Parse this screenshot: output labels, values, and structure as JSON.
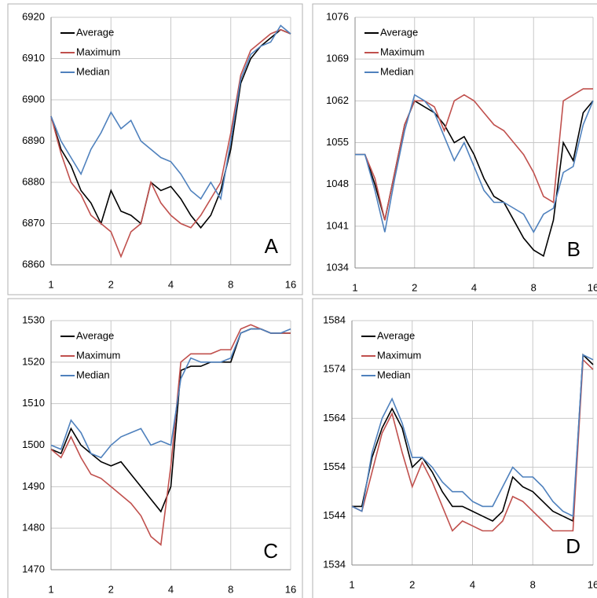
{
  "chart_data": [
    {
      "type": "line",
      "label": "A",
      "xscale": "log",
      "grid": true,
      "legend": "upper left",
      "x": [
        1,
        1.122,
        1.26,
        1.414,
        1.587,
        1.782,
        2,
        2.245,
        2.52,
        2.828,
        3.175,
        3.564,
        4,
        4.49,
        5.04,
        5.657,
        6.35,
        7.127,
        8,
        8.98,
        10.079,
        11.314,
        12.699,
        14.254,
        16
      ],
      "xlim": [
        1,
        16
      ],
      "xticks": [
        1,
        2,
        4,
        8,
        16
      ],
      "ylim": [
        6860,
        6920
      ],
      "yticks": [
        6860,
        6870,
        6880,
        6890,
        6900,
        6910,
        6920
      ],
      "series": [
        {
          "name": "Average",
          "color": "#000000",
          "values": [
            6896,
            6888,
            6884,
            6878,
            6875,
            6870,
            6878,
            6873,
            6872,
            6870,
            6880,
            6878,
            6879,
            6876,
            6872,
            6869,
            6872,
            6878,
            6888,
            6904,
            6910,
            6913,
            6915,
            6917,
            6916
          ]
        },
        {
          "name": "Maximum",
          "color": "#c0504d",
          "values": [
            6896,
            6887,
            6880,
            6877,
            6872,
            6870,
            6868,
            6862,
            6868,
            6870,
            6880,
            6875,
            6872,
            6870,
            6869,
            6872,
            6876,
            6880,
            6892,
            6906,
            6912,
            6914,
            6916,
            6917,
            6916
          ]
        },
        {
          "name": "Median",
          "color": "#4f81bd",
          "values": [
            6896,
            6890,
            6886,
            6882,
            6888,
            6892,
            6897,
            6893,
            6895,
            6890,
            6888,
            6886,
            6885,
            6882,
            6878,
            6876,
            6880,
            6876,
            6890,
            6905,
            6911,
            6913,
            6914,
            6918,
            6916
          ]
        }
      ]
    },
    {
      "type": "line",
      "label": "B",
      "xscale": "log",
      "grid": true,
      "legend": "upper left",
      "x": [
        1,
        1.122,
        1.26,
        1.414,
        1.587,
        1.782,
        2,
        2.245,
        2.52,
        2.828,
        3.175,
        3.564,
        4,
        4.49,
        5.04,
        5.657,
        6.35,
        7.127,
        8,
        8.98,
        10.079,
        11.314,
        12.699,
        14.254,
        16
      ],
      "xlim": [
        1,
        16
      ],
      "xticks": [
        1,
        2,
        4,
        8,
        16
      ],
      "ylim": [
        1034,
        1076
      ],
      "yticks": [
        1034,
        1041,
        1048,
        1055,
        1062,
        1069,
        1076
      ],
      "series": [
        {
          "name": "Average",
          "color": "#000000",
          "values": [
            1053,
            1053,
            1048,
            1042,
            1050,
            1058,
            1062,
            1061,
            1060,
            1058,
            1055,
            1056,
            1053,
            1049,
            1046,
            1045,
            1042,
            1039,
            1037,
            1036,
            1042,
            1055,
            1052,
            1060,
            1062
          ]
        },
        {
          "name": "Maximum",
          "color": "#c0504d",
          "values": [
            1053,
            1053,
            1049,
            1042,
            1050,
            1058,
            1062,
            1062,
            1061,
            1057,
            1062,
            1063,
            1062,
            1060,
            1058,
            1057,
            1055,
            1053,
            1050,
            1046,
            1045,
            1062,
            1063,
            1064,
            1064
          ]
        },
        {
          "name": "Median",
          "color": "#4f81bd",
          "values": [
            1053,
            1053,
            1047,
            1040,
            1049,
            1057,
            1063,
            1062,
            1060,
            1056,
            1052,
            1055,
            1051,
            1047,
            1045,
            1045,
            1044,
            1043,
            1040,
            1043,
            1044,
            1050,
            1051,
            1058,
            1062
          ]
        }
      ]
    },
    {
      "type": "line",
      "label": "C",
      "xscale": "log",
      "grid": true,
      "legend": "upper left",
      "x": [
        1,
        1.122,
        1.26,
        1.414,
        1.587,
        1.782,
        2,
        2.245,
        2.52,
        2.828,
        3.175,
        3.564,
        4,
        4.49,
        5.04,
        5.657,
        6.35,
        7.127,
        8,
        8.98,
        10.079,
        11.314,
        12.699,
        14.254,
        16
      ],
      "xlim": [
        1,
        16
      ],
      "xticks": [
        1,
        2,
        4,
        8,
        16
      ],
      "ylim": [
        1470,
        1530
      ],
      "yticks": [
        1470,
        1480,
        1490,
        1500,
        1510,
        1520,
        1530
      ],
      "series": [
        {
          "name": "Average",
          "color": "#000000",
          "values": [
            1499,
            1498,
            1504,
            1500,
            1498,
            1496,
            1495,
            1496,
            1493,
            1490,
            1487,
            1484,
            1490,
            1518,
            1519,
            1519,
            1520,
            1520,
            1520,
            1527,
            1528,
            1528,
            1527,
            1527,
            1527
          ]
        },
        {
          "name": "Maximum",
          "color": "#c0504d",
          "values": [
            1499,
            1497,
            1502,
            1497,
            1493,
            1492,
            1490,
            1488,
            1486,
            1483,
            1478,
            1476,
            1495,
            1520,
            1522,
            1522,
            1522,
            1523,
            1523,
            1528,
            1529,
            1528,
            1527,
            1527,
            1527
          ]
        },
        {
          "name": "Median",
          "color": "#4f81bd",
          "values": [
            1500,
            1499,
            1506,
            1503,
            1498,
            1497,
            1500,
            1502,
            1503,
            1504,
            1500,
            1501,
            1500,
            1516,
            1521,
            1520,
            1520,
            1520,
            1521,
            1527,
            1528,
            1528,
            1527,
            1527,
            1528
          ]
        }
      ]
    },
    {
      "type": "line",
      "label": "D",
      "xscale": "log",
      "grid": true,
      "legend": "upper left",
      "x": [
        1,
        1.122,
        1.26,
        1.414,
        1.587,
        1.782,
        2,
        2.245,
        2.52,
        2.828,
        3.175,
        3.564,
        4,
        4.49,
        5.04,
        5.657,
        6.35,
        7.127,
        8,
        8.98,
        10.079,
        11.314,
        12.699,
        14.254,
        16
      ],
      "xlim": [
        1,
        16
      ],
      "xticks": [
        1,
        2,
        4,
        8,
        16
      ],
      "ylim": [
        1534,
        1584
      ],
      "yticks": [
        1534,
        1544,
        1554,
        1564,
        1574,
        1584
      ],
      "series": [
        {
          "name": "Average",
          "color": "#000000",
          "values": [
            1546,
            1546,
            1556,
            1562,
            1566,
            1562,
            1554,
            1556,
            1553,
            1549,
            1546,
            1546,
            1545,
            1544,
            1543,
            1545,
            1552,
            1550,
            1549,
            1547,
            1545,
            1544,
            1543,
            1577,
            1575
          ]
        },
        {
          "name": "Maximum",
          "color": "#c0504d",
          "values": [
            1546,
            1545,
            1553,
            1561,
            1565,
            1557,
            1550,
            1555,
            1551,
            1546,
            1541,
            1543,
            1542,
            1541,
            1541,
            1543,
            1548,
            1547,
            1545,
            1543,
            1541,
            1541,
            1541,
            1576,
            1574
          ]
        },
        {
          "name": "Median",
          "color": "#4f81bd",
          "values": [
            1546,
            1545,
            1557,
            1564,
            1568,
            1563,
            1556,
            1556,
            1554,
            1551,
            1549,
            1549,
            1547,
            1546,
            1546,
            1550,
            1554,
            1552,
            1552,
            1550,
            1547,
            1545,
            1544,
            1577,
            1576
          ]
        }
      ]
    }
  ]
}
